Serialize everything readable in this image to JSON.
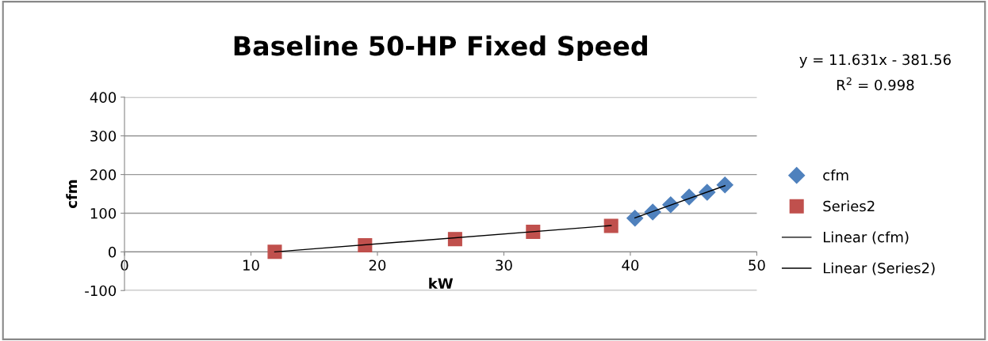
{
  "chart_data": {
    "type": "scatter",
    "title": "Baseline 50-HP Fixed Speed",
    "xlabel": "kW",
    "ylabel": "cfm",
    "annotations": [
      "y = 11.631x - 381.56",
      "R$^{2}$ = 0.998"
    ],
    "series": [
      {
        "name": "cfm",
        "color": "#4f81bd",
        "marker": "diamond",
        "x": [
          40.36,
          41.77,
          43.19,
          44.65,
          46.07,
          47.48
        ],
        "values": [
          87,
          103,
          122,
          142,
          154,
          173
        ]
      },
      {
        "name": "Series2",
        "color": "#c0504d",
        "marker": "square",
        "x": [
          11.88,
          19.02,
          26.14,
          32.31,
          38.48
        ],
        "values": [
          0,
          17,
          33,
          52,
          67
        ]
      },
      {
        "name": "Linear (cfm)",
        "type": "line",
        "color": "#000000",
        "marker": "none",
        "x": [
          40.36,
          47.48
        ],
        "values": [
          88,
          171
        ]
      },
      {
        "name": "Linear (Series2)",
        "type": "line",
        "color": "#000000",
        "marker": "none",
        "x": [
          11.88,
          38.48
        ],
        "values": [
          0,
          68
        ]
      }
    ],
    "xlim": [
      0,
      50
    ],
    "xticks": [
      0,
      10,
      20,
      30,
      40,
      50
    ],
    "ylim": [
      -100,
      400
    ],
    "yticks": [
      -100,
      0,
      100,
      200,
      300,
      400
    ],
    "grid": "y",
    "legend": "right"
  }
}
